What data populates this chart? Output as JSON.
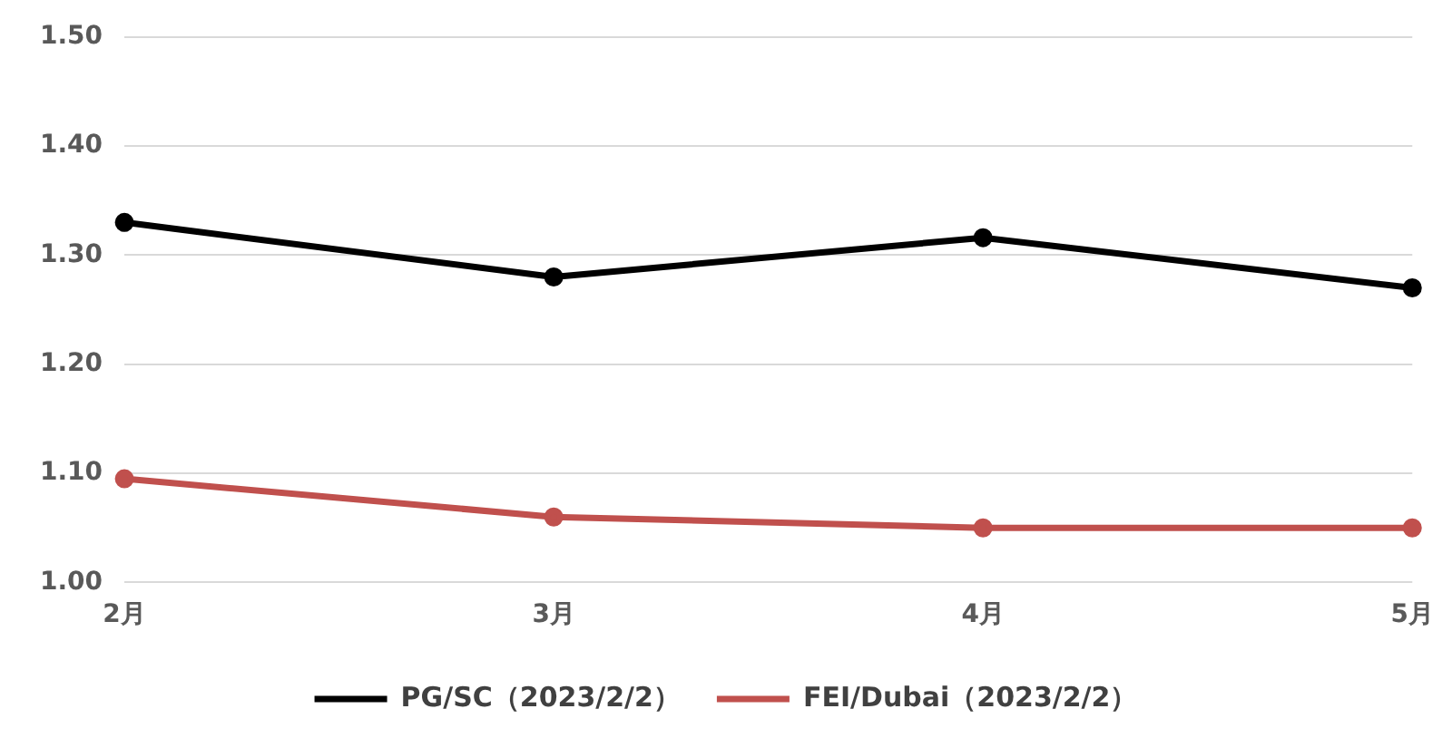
{
  "chart_data": {
    "type": "line",
    "categories": [
      "2月",
      "3月",
      "4月",
      "5月"
    ],
    "series": [
      {
        "name": "PG/SC（2023/2/2）",
        "color": "#000000",
        "values": [
          1.33,
          1.28,
          1.316,
          1.27
        ]
      },
      {
        "name": "FEI/Dubai（2023/2/2）",
        "color": "#c0504d",
        "values": [
          1.095,
          1.06,
          1.05,
          1.05
        ]
      }
    ],
    "ylim": [
      1.0,
      1.5
    ],
    "yticks": [
      {
        "value": 1.0,
        "label": "1.00"
      },
      {
        "value": 1.1,
        "label": "1.10"
      },
      {
        "value": 1.2,
        "label": "1.20"
      },
      {
        "value": 1.3,
        "label": "1.30"
      },
      {
        "value": 1.4,
        "label": "1.40"
      },
      {
        "value": 1.5,
        "label": "1.50"
      }
    ],
    "grid": "y",
    "legend": "bottom",
    "marker": "circle",
    "line_style": "solid"
  }
}
